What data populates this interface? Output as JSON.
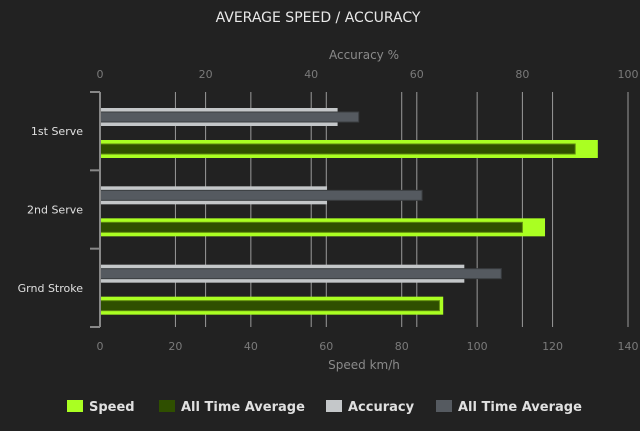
{
  "chart_data": {
    "type": "bar",
    "orientation": "horizontal",
    "title": "AVERAGE SPEED / ACCURACY",
    "categories": [
      "1st Serve",
      "2nd Serve",
      "Grnd Stroke"
    ],
    "bottom_axis": {
      "label": "Speed km/h",
      "range": [
        0,
        140
      ],
      "ticks": [
        "0",
        "20",
        "40",
        "60",
        "80",
        "100",
        "120",
        "140"
      ]
    },
    "top_axis": {
      "label": "Accuracy %",
      "range": [
        0,
        100
      ],
      "ticks": [
        "0",
        "20",
        "40",
        "60",
        "80",
        "100"
      ]
    },
    "grid": true,
    "legend_position": "bottom",
    "series": [
      {
        "name": "Speed",
        "axis": "bottom",
        "color": "#aaff22",
        "values": [
          132,
          118,
          91
        ]
      },
      {
        "name": "All Time Average",
        "axis": "bottom",
        "color": "#2f4f00",
        "values": [
          126,
          112,
          90
        ]
      },
      {
        "name": "Accuracy",
        "axis": "top",
        "color": "#c4c7c9",
        "values": [
          45,
          43,
          69
        ]
      },
      {
        "name": "All Time Average",
        "axis": "top",
        "color": "#555a60",
        "values": [
          49,
          61,
          76
        ]
      }
    ]
  }
}
